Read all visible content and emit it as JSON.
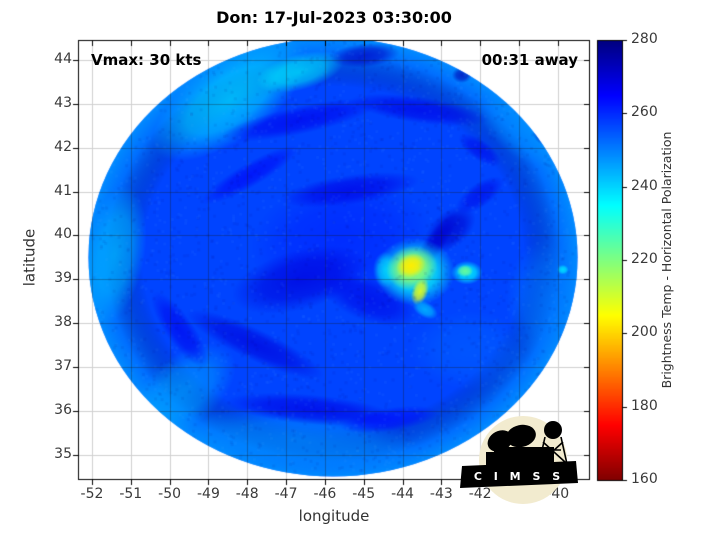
{
  "figure": {
    "title": "Don: 17-Jul-2023 03:30:00",
    "annotations": {
      "vmax": "Vmax: 30 kts",
      "eta_away": "00:31 away"
    },
    "logo": {
      "text": "C I M S S"
    },
    "background": "#ffffff"
  },
  "chart_data": {
    "type": "heatmap",
    "title": "Don: 17-Jul-2023 03:30:00",
    "xlabel": "longitude",
    "ylabel": "latitude",
    "xlim": [
      -52.36,
      -39.17
    ],
    "ylim": [
      34.42,
      44.46
    ],
    "x_ticks": [
      -52,
      -51,
      -50,
      -49,
      -48,
      -47,
      -46,
      -45,
      -44,
      -43,
      -42,
      -41,
      -40
    ],
    "y_ticks": [
      35,
      36,
      37,
      38,
      39,
      40,
      41,
      42,
      43,
      44
    ],
    "grid": true,
    "grid_color_outside": "#cfcfcf",
    "colorbar": {
      "label": "Brightness Temp - Horizontal Polarization",
      "ticks": [
        280,
        260,
        240,
        220,
        200,
        180,
        160
      ],
      "range": [
        160,
        280
      ],
      "colormap": "jet_reversed",
      "position": "right"
    },
    "swath": {
      "note": "circular microwave sensor swath over storm",
      "center_lon": -45.79,
      "center_lat": 39.5,
      "radius_lon_deg": 6.3,
      "radius_lat_deg": 5.0,
      "base_temp_K": 257,
      "edge_temp_K": 246
    },
    "features": [
      {
        "lon": -48.45,
        "lat": 43.09,
        "rx": 2.32,
        "ry": 0.91,
        "rot": -35,
        "t": 240,
        "a": 0.8,
        "note": "cyan band upper-left rim"
      },
      {
        "lon": -46.64,
        "lat": 43.73,
        "rx": 1.16,
        "ry": 0.41,
        "rot": -15,
        "t": 237,
        "a": 0.7
      },
      {
        "lon": -51.41,
        "lat": 39.56,
        "rx": 0.77,
        "ry": 1.59,
        "rot": 10,
        "t": 243,
        "a": 0.7
      },
      {
        "lon": -46.64,
        "lat": 35.34,
        "rx": 3.09,
        "ry": 0.68,
        "rot": 5,
        "t": 247,
        "a": 0.6
      },
      {
        "lon": -49.61,
        "lat": 36.48,
        "rx": 1.55,
        "ry": 0.8,
        "rot": -40,
        "t": 245,
        "a": 0.6
      },
      {
        "lon": -40.33,
        "lat": 38.53,
        "rx": 1.03,
        "ry": 1.37,
        "rot": 0,
        "t": 250,
        "a": 0.5
      },
      {
        "lon": -40.98,
        "lat": 42.41,
        "rx": 1.29,
        "ry": 0.57,
        "rot": 40,
        "t": 248,
        "a": 0.5
      },
      {
        "lon": -42.27,
        "lat": 37.39,
        "rx": 1.55,
        "ry": 0.91,
        "rot": 0,
        "t": 252,
        "a": 0.4
      },
      {
        "lon": -45.61,
        "lat": 39.9,
        "rx": 2.32,
        "ry": 1.37,
        "rot": -10,
        "t": 263,
        "a": 0.45,
        "note": "broad dark wash around center"
      },
      {
        "lon": -46.64,
        "lat": 42.63,
        "rx": 2.06,
        "ry": 0.32,
        "rot": -12,
        "t": 267,
        "a": 0.7
      },
      {
        "lon": -43.55,
        "lat": 42.86,
        "rx": 1.8,
        "ry": 0.3,
        "rot": 8,
        "t": 268,
        "a": 0.7
      },
      {
        "lon": -47.93,
        "lat": 41.38,
        "rx": 1.42,
        "ry": 0.27,
        "rot": -30,
        "t": 266,
        "a": 0.65
      },
      {
        "lon": -45.36,
        "lat": 41.04,
        "rx": 1.8,
        "ry": 0.34,
        "rot": -8,
        "t": 268,
        "a": 0.7
      },
      {
        "lon": -46.64,
        "lat": 38.99,
        "rx": 1.8,
        "ry": 0.68,
        "rot": -15,
        "t": 269,
        "a": 0.7
      },
      {
        "lon": -44.84,
        "lat": 38.53,
        "rx": 1.29,
        "ry": 0.5,
        "rot": 20,
        "t": 268,
        "a": 0.65
      },
      {
        "lon": -43.29,
        "lat": 39.67,
        "rx": 1.16,
        "ry": 0.23,
        "rot": -55,
        "t": 270,
        "a": 0.75,
        "note": "dark slash through burst"
      },
      {
        "lon": -47.8,
        "lat": 37.51,
        "rx": 1.93,
        "ry": 0.36,
        "rot": 25,
        "t": 269,
        "a": 0.7
      },
      {
        "lon": -49.74,
        "lat": 37.85,
        "rx": 1.16,
        "ry": 0.32,
        "rot": 55,
        "t": 267,
        "a": 0.65
      },
      {
        "lon": -46.38,
        "lat": 36.03,
        "rx": 2.19,
        "ry": 0.34,
        "rot": 5,
        "t": 268,
        "a": 0.7,
        "note": "dark band lower spiral"
      },
      {
        "lon": -44.33,
        "lat": 35.8,
        "rx": 1.29,
        "ry": 0.27,
        "rot": -8,
        "t": 266,
        "a": 0.6
      },
      {
        "lon": -44.97,
        "lat": 44.11,
        "rx": 0.9,
        "ry": 0.27,
        "rot": -5,
        "t": 272,
        "a": 0.7
      },
      {
        "lon": -41.36,
        "lat": 43.82,
        "rx": 0.36,
        "ry": 0.27,
        "rot": 0,
        "t": 277,
        "a": 0.8,
        "note": "navy patch upper-right"
      },
      {
        "lon": -40.8,
        "lat": 42.97,
        "rx": 0.31,
        "ry": 0.23,
        "rot": 0,
        "t": 276,
        "a": 0.8
      },
      {
        "lon": -40.33,
        "lat": 42.29,
        "rx": 0.33,
        "ry": 0.23,
        "rot": 30,
        "t": 275,
        "a": 0.75
      },
      {
        "lon": -42.47,
        "lat": 43.66,
        "rx": 0.26,
        "ry": 0.18,
        "rot": 0,
        "t": 274,
        "a": 0.7
      },
      {
        "lon": -42.01,
        "lat": 41.95,
        "rx": 0.64,
        "ry": 0.23,
        "rot": 35,
        "t": 268,
        "a": 0.6
      },
      {
        "lon": -42.78,
        "lat": 40.13,
        "rx": 0.77,
        "ry": 0.41,
        "rot": -40,
        "t": 271,
        "a": 0.7
      },
      {
        "lon": -42.01,
        "lat": 40.92,
        "rx": 0.72,
        "ry": 0.27,
        "rot": -35,
        "t": 268,
        "a": 0.6
      },
      {
        "lon": -44.45,
        "lat": 39.22,
        "rx": 0.31,
        "ry": 0.41,
        "rot": 0,
        "t": 236,
        "a": 0.6
      },
      {
        "lon": -43.68,
        "lat": 39.17,
        "rx": 1.03,
        "ry": 0.77,
        "rot": 0,
        "t": 234,
        "a": 0.9,
        "note": "convective burst cyan halo"
      },
      {
        "lon": -43.76,
        "lat": 39.26,
        "rx": 0.67,
        "ry": 0.5,
        "rot": -15,
        "t": 216,
        "a": 0.95,
        "note": "convective burst green ring"
      },
      {
        "lon": -43.78,
        "lat": 39.31,
        "rx": 0.39,
        "ry": 0.27,
        "rot": -20,
        "t": 203,
        "a": 1,
        "note": "convective burst yellow core (coldest cloud tops)"
      },
      {
        "lon": -43.55,
        "lat": 38.72,
        "rx": 0.21,
        "ry": 0.32,
        "rot": 20,
        "t": 207,
        "a": 0.9
      },
      {
        "lon": -43.42,
        "lat": 38.31,
        "rx": 0.36,
        "ry": 0.18,
        "rot": 30,
        "t": 240,
        "a": 0.7
      },
      {
        "lon": -42.34,
        "lat": 39.15,
        "rx": 0.41,
        "ry": 0.27,
        "rot": 0,
        "t": 235,
        "a": 0.85,
        "note": "secondary cold spot"
      },
      {
        "lon": -42.39,
        "lat": 39.19,
        "rx": 0.21,
        "ry": 0.14,
        "rot": 0,
        "t": 222,
        "a": 0.9
      },
      {
        "lon": -39.87,
        "lat": 39.22,
        "rx": 0.15,
        "ry": 0.11,
        "rot": 0,
        "t": 238,
        "a": 0.9,
        "note": "small cold dot near right rim"
      }
    ]
  }
}
